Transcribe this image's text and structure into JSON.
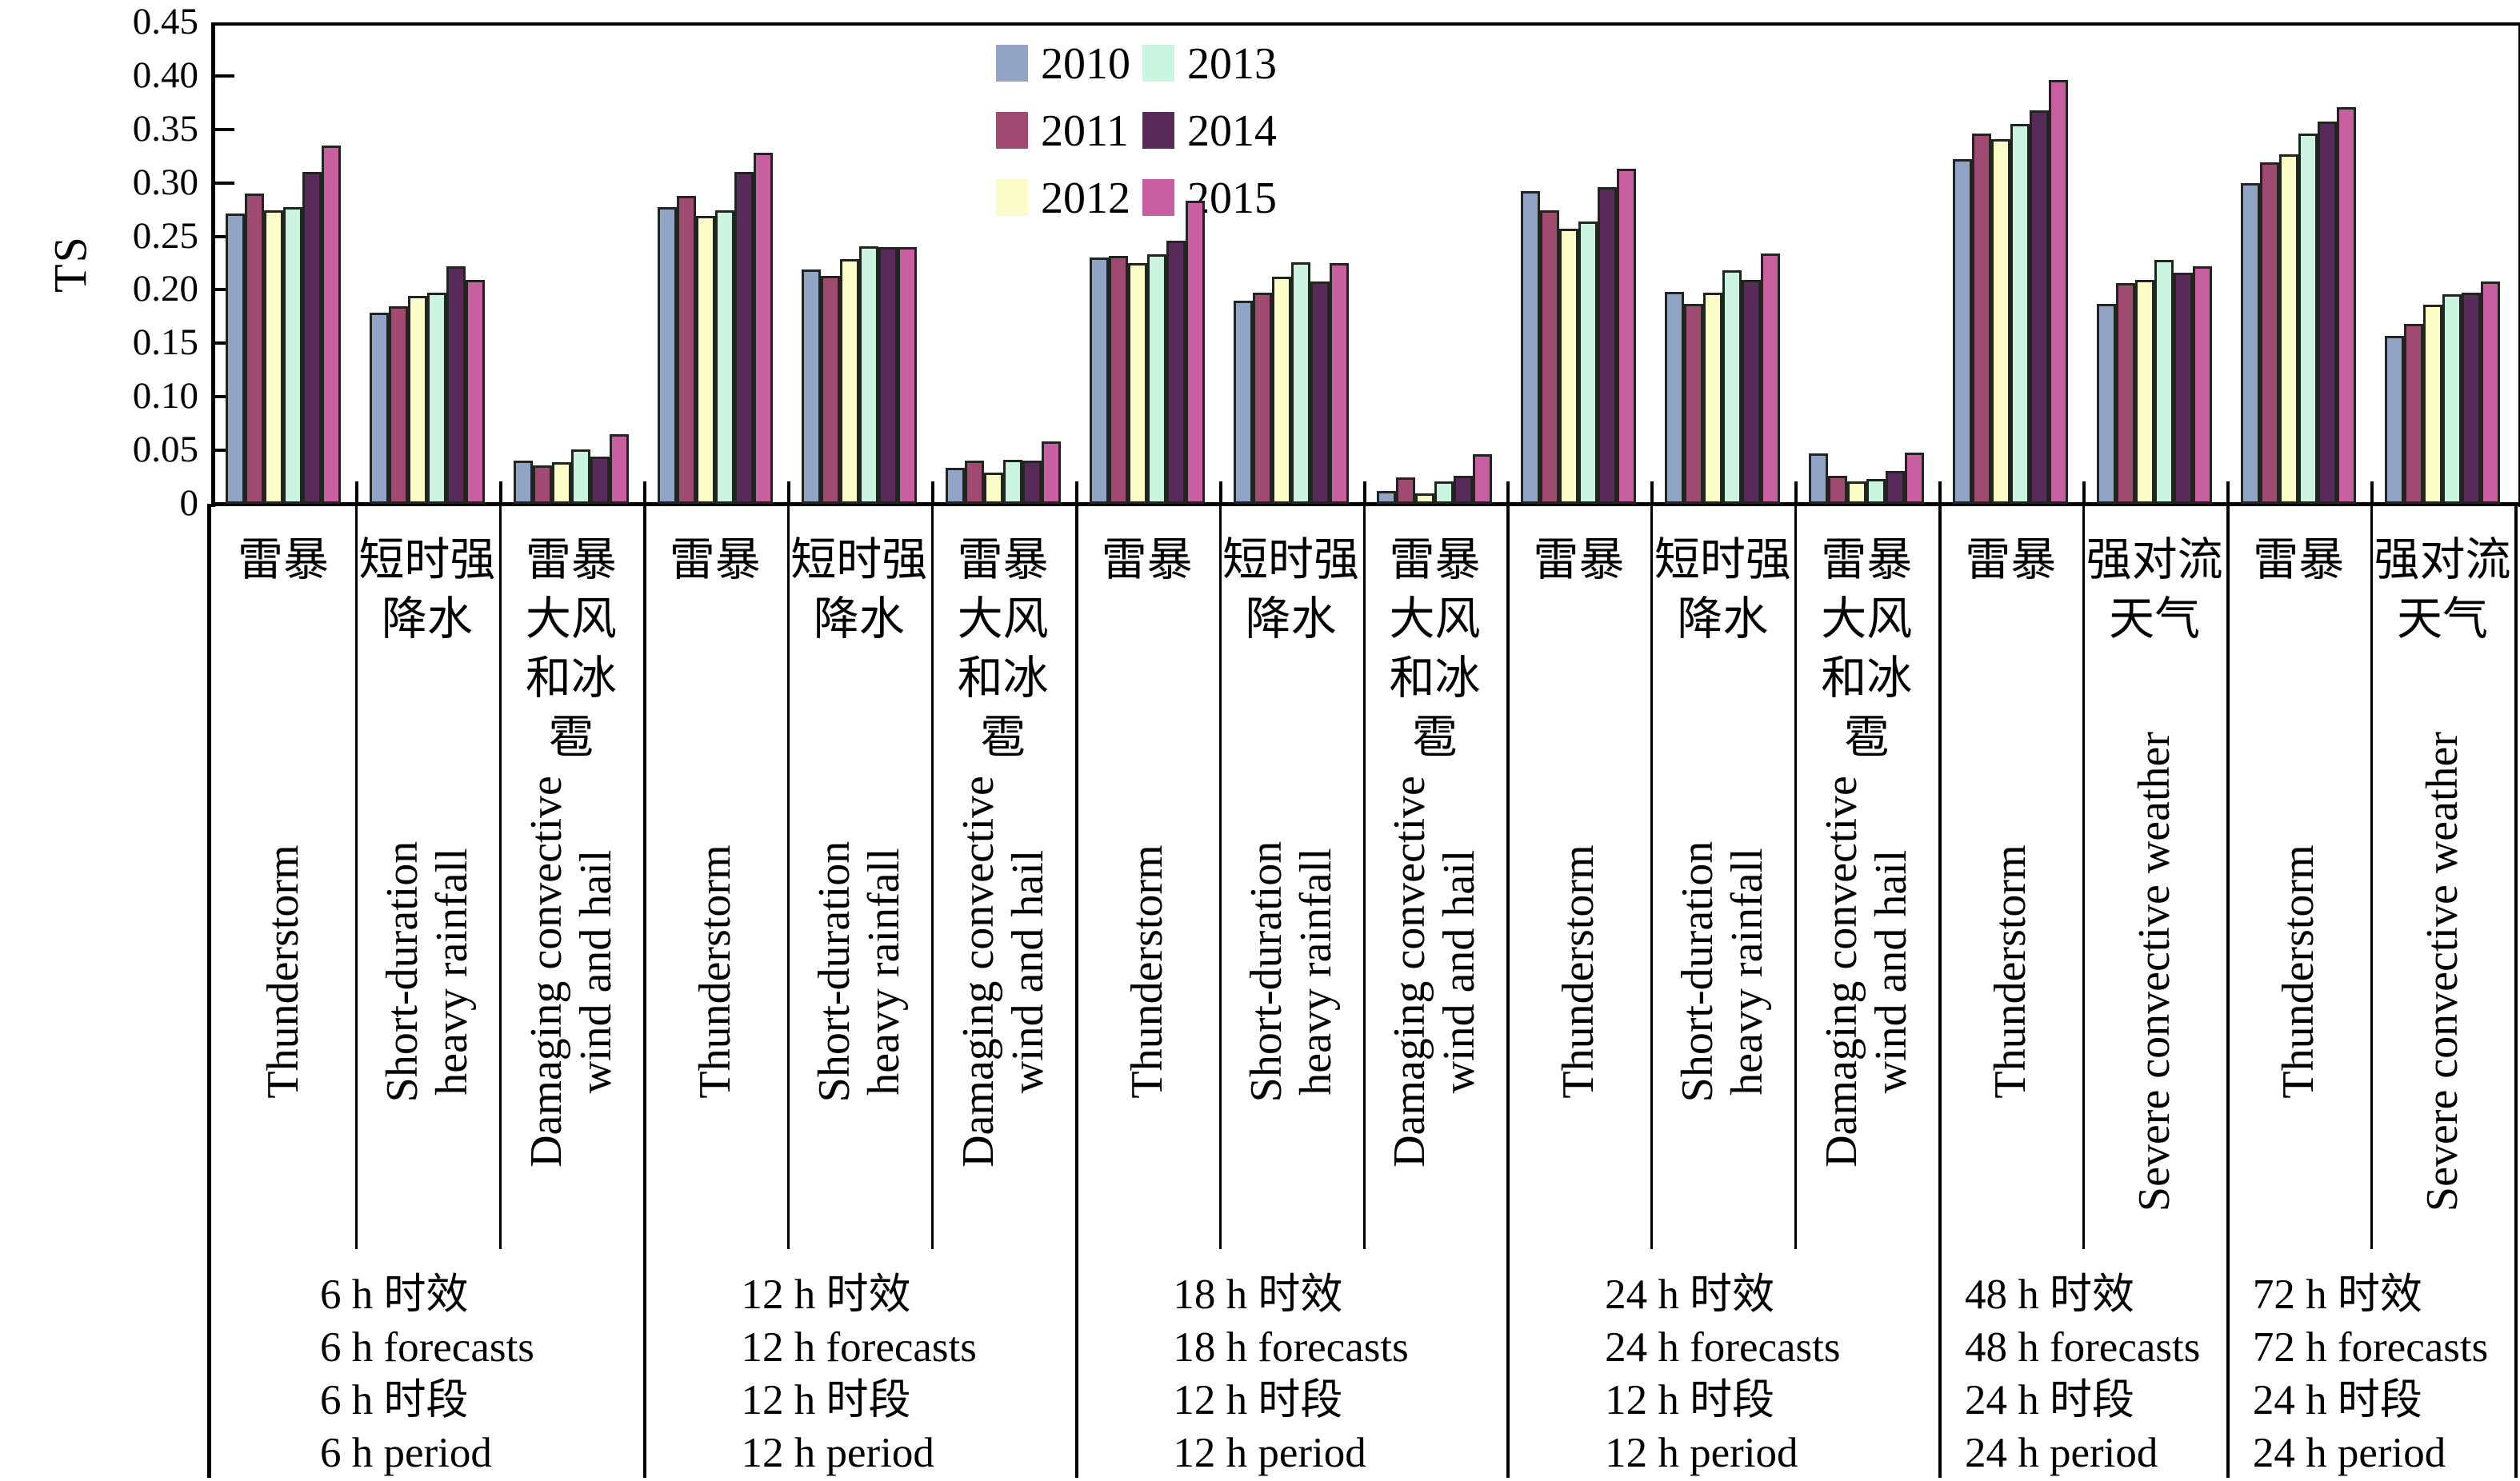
{
  "chart_data": {
    "type": "bar",
    "title": "",
    "ylabel": "TS",
    "ylim": [
      0,
      0.45
    ],
    "ytick_step": 0.05,
    "ytick_labels": [
      "0",
      "0.05",
      "0.10",
      "0.15",
      "0.20",
      "0.25",
      "0.30",
      "0.35",
      "0.40",
      "0.45"
    ],
    "grid": false,
    "legend_position": "top-center-two-columns",
    "series_names": [
      "2010",
      "2011",
      "2012",
      "2013",
      "2014",
      "2015"
    ],
    "series_colors": [
      "#92a4c6",
      "#a04a72",
      "#fbfcc8",
      "#cbf5e0",
      "#572a59",
      "#c75fa1"
    ],
    "bar_outline_color": "#20261f",
    "sections": [
      {
        "footer_lines": [
          "6 h 时效",
          "6 h forecasts",
          "6 h 时段",
          "6 h period"
        ],
        "groups": [
          {
            "label_cn": [
              "雷暴"
            ],
            "label_en": [
              "Thunderstorm"
            ],
            "values": [
              0.271,
              0.29,
              0.274,
              0.277,
              0.31,
              0.335
            ]
          },
          {
            "label_cn": [
              "短时强",
              "降水"
            ],
            "label_en": [
              "Short-duration",
              "heavy rainfall"
            ],
            "values": [
              0.179,
              0.185,
              0.194,
              0.197,
              0.222,
              0.209
            ]
          },
          {
            "label_cn": [
              "雷暴",
              "大风",
              "和冰",
              "雹"
            ],
            "label_en": [
              "Damaging convective",
              "wind and hail"
            ],
            "values": [
              0.04,
              0.036,
              0.039,
              0.051,
              0.044,
              0.065
            ]
          }
        ]
      },
      {
        "footer_lines": [
          "12 h 时效",
          "12 h forecasts",
          "12 h 时段",
          "12 h period"
        ],
        "groups": [
          {
            "label_cn": [
              "雷暴"
            ],
            "label_en": [
              "Thunderstorm"
            ],
            "values": [
              0.277,
              0.288,
              0.269,
              0.274,
              0.31,
              0.328
            ]
          },
          {
            "label_cn": [
              "短时强",
              "降水"
            ],
            "label_en": [
              "Short-duration",
              "heavy rainfall"
            ],
            "values": [
              0.219,
              0.213,
              0.229,
              0.241,
              0.24,
              0.24
            ]
          },
          {
            "label_cn": [
              "雷暴",
              "大风",
              "和冰",
              "雹"
            ],
            "label_en": [
              "Damaging convective",
              "wind and hail"
            ],
            "values": [
              0.034,
              0.04,
              0.029,
              0.041,
              0.04,
              0.058
            ]
          }
        ]
      },
      {
        "footer_lines": [
          "18 h 时效",
          "18 h forecasts",
          "12 h 时段",
          "12 h period"
        ],
        "groups": [
          {
            "label_cn": [
              "雷暴"
            ],
            "label_en": [
              "Thunderstorm"
            ],
            "values": [
              0.23,
              0.232,
              0.225,
              0.233,
              0.246,
              0.283
            ]
          },
          {
            "label_cn": [
              "短时强",
              "降水"
            ],
            "label_en": [
              "Short-duration",
              "heavy rainfall"
            ],
            "values": [
              0.19,
              0.197,
              0.212,
              0.226,
              0.208,
              0.225
            ]
          },
          {
            "label_cn": [
              "雷暴",
              "大风",
              "和冰",
              "雹"
            ],
            "label_en": [
              "Damaging convective",
              "wind and hail"
            ],
            "values": [
              0.012,
              0.025,
              0.01,
              0.021,
              0.026,
              0.046
            ]
          }
        ]
      },
      {
        "footer_lines": [
          "24 h 时效",
          "24 h forecasts",
          "12 h 时段",
          "12 h period"
        ],
        "groups": [
          {
            "label_cn": [
              "雷暴"
            ],
            "label_en": [
              "Thunderstorm"
            ],
            "values": [
              0.292,
              0.274,
              0.257,
              0.264,
              0.296,
              0.313
            ]
          },
          {
            "label_cn": [
              "短时强",
              "降水"
            ],
            "label_en": [
              "Short-duration",
              "heavy rainfall"
            ],
            "values": [
              0.198,
              0.187,
              0.197,
              0.218,
              0.209,
              0.234
            ]
          },
          {
            "label_cn": [
              "雷暴",
              "大风",
              "和冰",
              "雹"
            ],
            "label_en": [
              "Damaging convective",
              "wind and hail"
            ],
            "values": [
              0.047,
              0.026,
              0.021,
              0.023,
              0.031,
              0.048
            ]
          }
        ]
      },
      {
        "footer_lines": [
          "48 h 时效",
          "48 h forecasts",
          "24 h 时段",
          "24 h period"
        ],
        "groups": [
          {
            "label_cn": [
              "雷暴"
            ],
            "label_en": [
              "Thunderstorm"
            ],
            "values": [
              0.322,
              0.346,
              0.341,
              0.355,
              0.368,
              0.396
            ]
          },
          {
            "label_cn": [
              "强对流",
              "天气"
            ],
            "label_en": [
              "Severe convective weather"
            ],
            "values": [
              0.187,
              0.206,
              0.209,
              0.228,
              0.216,
              0.222
            ]
          }
        ]
      },
      {
        "footer_lines": [
          "72 h 时效",
          "72 h forecasts",
          "24 h 时段",
          "24 h period"
        ],
        "groups": [
          {
            "label_cn": [
              "雷暴"
            ],
            "label_en": [
              "Thunderstorm"
            ],
            "values": [
              0.3,
              0.319,
              0.327,
              0.346,
              0.357,
              0.371
            ]
          },
          {
            "label_cn": [
              "强对流",
              "天气"
            ],
            "label_en": [
              "Severe convective weather"
            ],
            "values": [
              0.157,
              0.168,
              0.186,
              0.196,
              0.197,
              0.208
            ]
          }
        ]
      }
    ]
  }
}
